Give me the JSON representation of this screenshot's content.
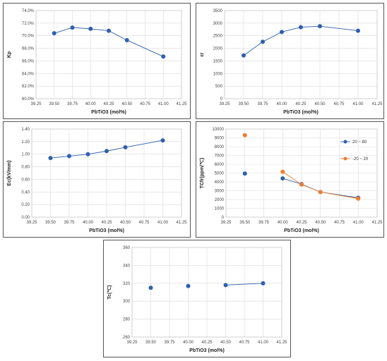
{
  "chart_data": [
    {
      "type": "line",
      "title": "",
      "xlabel": "PbTiO3 (mol%)",
      "ylabel": "Kp",
      "xlim": [
        39.25,
        41.25
      ],
      "ylim": [
        60.0,
        74.0
      ],
      "x_ticks": [
        "39.25",
        "39.50",
        "39.75",
        "40.00",
        "40.25",
        "40.50",
        "40.75",
        "41.00",
        "41.25"
      ],
      "y_ticks": [
        "60.0%",
        "62.0%",
        "64.0%",
        "66.0%",
        "68.0%",
        "70.0%",
        "72.0%",
        "74.0%"
      ],
      "grid": true,
      "series": [
        {
          "x": [
            39.5,
            39.75,
            40.0,
            40.25,
            40.5,
            41.0
          ],
          "y": [
            70.4,
            71.3,
            71.1,
            70.8,
            69.3,
            66.7
          ]
        }
      ],
      "colors": [
        "#2e5fb0"
      ]
    },
    {
      "type": "line",
      "title": "",
      "xlabel": "PbTiO3 (mol%)",
      "ylabel": "εr",
      "xlim": [
        39.25,
        41.25
      ],
      "ylim": [
        0,
        3500
      ],
      "x_ticks": [
        "39.25",
        "39.50",
        "39.75",
        "40.00",
        "40.25",
        "40.50",
        "40.75",
        "41.00",
        "41.25"
      ],
      "y_ticks": [
        "0",
        "500",
        "1000",
        "1500",
        "2000",
        "2500",
        "3000",
        "3500"
      ],
      "grid": true,
      "series": [
        {
          "x": [
            39.5,
            39.75,
            40.0,
            40.25,
            40.5,
            41.0
          ],
          "y": [
            1720,
            2260,
            2650,
            2840,
            2880,
            2700
          ]
        }
      ],
      "colors": [
        "#2e5fb0"
      ]
    },
    {
      "type": "line",
      "title": "",
      "xlabel": "PbTiO3 (mol%)",
      "ylabel": "Ec(kV/mm)",
      "xlim": [
        39.25,
        41.25
      ],
      "ylim": [
        0.0,
        1.4
      ],
      "x_ticks": [
        "39.25",
        "39.50",
        "39.75",
        "40.00",
        "40.25",
        "40.50",
        "40.75",
        "41.00",
        "41.25"
      ],
      "y_ticks": [
        "0.00",
        "0.20",
        "0.40",
        "0.60",
        "0.80",
        "1.00",
        "1.20",
        "1.40"
      ],
      "grid": true,
      "series": [
        {
          "x": [
            39.5,
            39.75,
            40.0,
            40.25,
            40.5,
            41.0
          ],
          "y": [
            0.94,
            0.97,
            1.0,
            1.05,
            1.11,
            1.22
          ]
        }
      ],
      "colors": [
        "#2e5fb0"
      ]
    },
    {
      "type": "line",
      "title": "",
      "xlabel": "PbTiO3 (mol%)",
      "ylabel": "TCfr(ppm/℃)",
      "xlim": [
        39.25,
        41.25
      ],
      "ylim": [
        0,
        10000
      ],
      "x_ticks": [
        "39.25",
        "39.50",
        "39.75",
        "40.00",
        "40.25",
        "40.50",
        "40.75",
        "41.00",
        "41.25"
      ],
      "y_ticks": [
        "0",
        "1000",
        "2000",
        "3000",
        "4000",
        "5000",
        "6000",
        "7000",
        "8000",
        "9000",
        "10000"
      ],
      "grid": true,
      "legend": "top-right",
      "series": [
        {
          "name": "20 ~ 80",
          "x": [
            39.5,
            40.0,
            40.25,
            40.5,
            41.0
          ],
          "y": [
            4950,
            4400,
            3750,
            2850,
            2200
          ],
          "connect_from": 1
        },
        {
          "name": "-20 ~ 20",
          "x": [
            39.5,
            40.0,
            40.25,
            40.5,
            41.0
          ],
          "y": [
            9300,
            5150,
            3700,
            2850,
            2100
          ],
          "connect_from": 1
        }
      ],
      "colors": [
        "#2e5fb0",
        "#ed7d31"
      ]
    },
    {
      "type": "line",
      "title": "",
      "xlabel": "PbTiO3 (mol%)",
      "ylabel": "Tc(℃)",
      "xlim": [
        39.25,
        41.25
      ],
      "ylim": [
        260,
        360
      ],
      "x_ticks": [
        "39.25",
        "39.50",
        "39.75",
        "40.00",
        "40.25",
        "40.50",
        "40.75",
        "41.00",
        "41.25"
      ],
      "y_ticks": [
        "260",
        "280",
        "300",
        "320",
        "340",
        "360"
      ],
      "grid": true,
      "series": [
        {
          "x": [
            39.5,
            40.0,
            40.5,
            41.0
          ],
          "y": [
            315,
            317,
            318,
            320
          ],
          "connect_from": 2
        }
      ],
      "colors": [
        "#2e5fb0"
      ]
    }
  ]
}
